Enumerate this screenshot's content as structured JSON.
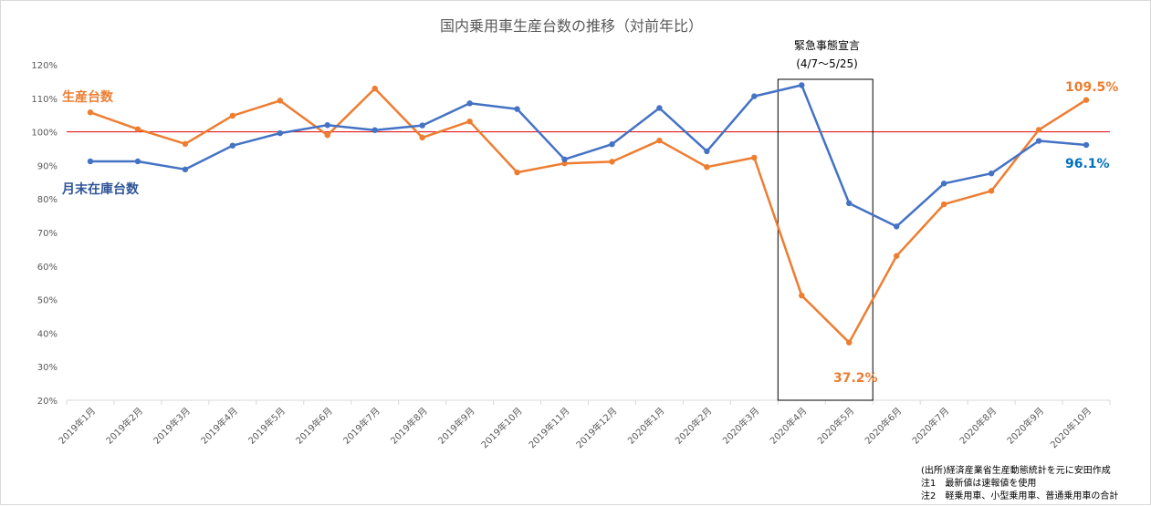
{
  "chart_data": {
    "type": "line",
    "title": "国内乗用車生産台数の推移（対前年比）",
    "categories": [
      "2019年1月",
      "2019年2月",
      "2019年3月",
      "2019年4月",
      "2019年5月",
      "2019年6月",
      "2019年7月",
      "2019年8月",
      "2019年9月",
      "2019年10月",
      "2019年11月",
      "2019年12月",
      "2020年1月",
      "2020年2月",
      "2020年3月",
      "2020年4月",
      "2020年5月",
      "2020年6月",
      "2020年7月",
      "2020年8月",
      "2020年9月",
      "2020年10月"
    ],
    "ylim": [
      20,
      120
    ],
    "yticks": [
      "20%",
      "30%",
      "40%",
      "50%",
      "60%",
      "70%",
      "80%",
      "90%",
      "100%",
      "110%",
      "120%"
    ],
    "reference_line": {
      "value": 100,
      "color": "#e00000"
    },
    "series": [
      {
        "name": "生産台数",
        "color": "#ed7d31",
        "values": [
          105.8,
          100.8,
          96.4,
          104.8,
          109.3,
          99.0,
          112.9,
          98.3,
          103.1,
          87.9,
          90.6,
          91.1,
          97.4,
          89.5,
          92.3,
          51.2,
          37.2,
          63.0,
          78.4,
          82.4,
          100.6,
          109.5
        ]
      },
      {
        "name": "月末在庫台数",
        "color": "#4472c4",
        "values": [
          91.2,
          91.2,
          88.8,
          95.9,
          99.6,
          102.0,
          100.5,
          101.9,
          108.5,
          106.8,
          91.8,
          96.3,
          107.1,
          94.2,
          110.6,
          113.9,
          78.7,
          71.8,
          84.6,
          87.6,
          97.3,
          96.1
        ]
      }
    ],
    "annotations": {
      "emergency_title": "緊急事態宣言",
      "emergency_period": "(4/7〜5/25)",
      "last_production": "109.5%",
      "last_inventory": "96.1%",
      "min_production": "37.2%"
    },
    "grid": false
  },
  "notes": [
    "(出所)経済産業省生産動態統計を元に安田作成",
    "注1　最新値は速報値を使用",
    "注2　軽乗用車、小型乗用車、普通乗用車の合計"
  ]
}
